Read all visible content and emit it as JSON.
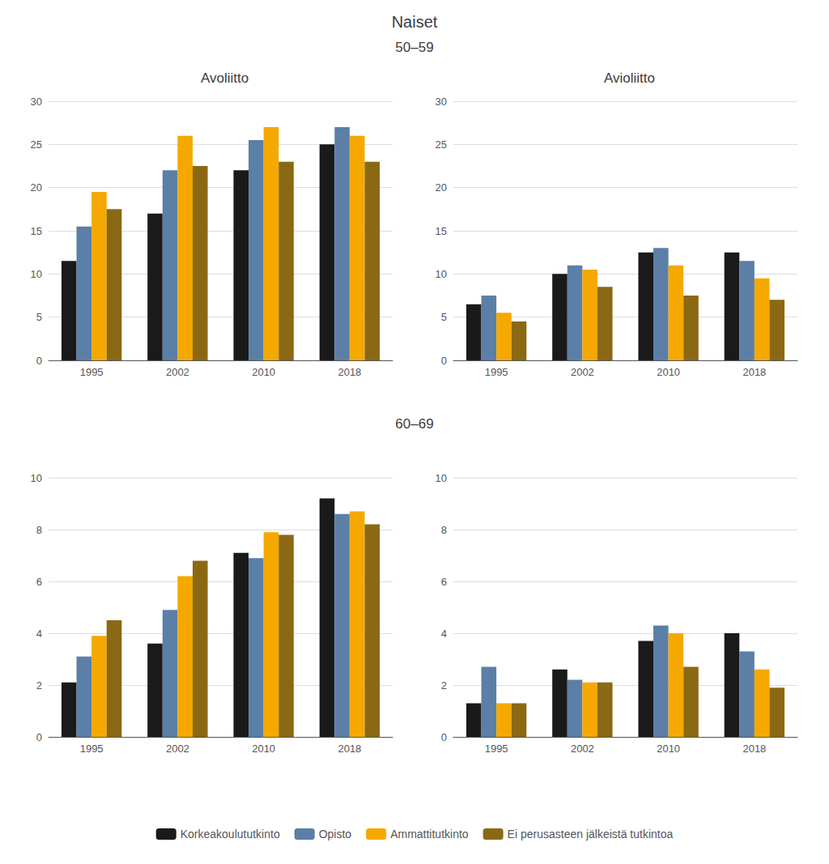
{
  "title": "Naiset",
  "chart_data": [
    {
      "type": "bar",
      "title": "Avoliitto",
      "annotations": [
        "50–59"
      ],
      "categories": [
        "1995",
        "2002",
        "2010",
        "2018"
      ],
      "series": [
        {
          "name": "Korkeakoulututkinto",
          "color": "#1a1a1a",
          "values": [
            11.5,
            17.0,
            22.0,
            25.0
          ]
        },
        {
          "name": "Opisto",
          "color": "#5b7fa6",
          "values": [
            15.5,
            22.0,
            25.5,
            27.0
          ]
        },
        {
          "name": "Ammattitutkinto",
          "color": "#f5a800",
          "values": [
            19.5,
            26.0,
            27.0,
            26.0
          ]
        },
        {
          "name": "Ei perusasteen jälkeistä tutkintoa",
          "color": "#8b6914",
          "values": [
            17.5,
            22.5,
            23.0,
            23.0
          ]
        }
      ],
      "ylim": [
        0,
        30
      ],
      "yticks": [
        0,
        5,
        10,
        15,
        20,
        25,
        30
      ],
      "grid": true,
      "legend": "bottom"
    },
    {
      "type": "bar",
      "title": "Avioliitto",
      "categories": [
        "1995",
        "2002",
        "2010",
        "2018"
      ],
      "series": [
        {
          "name": "Korkeakoulututkinto",
          "color": "#1a1a1a",
          "values": [
            6.5,
            10.0,
            12.5,
            12.5
          ]
        },
        {
          "name": "Opisto",
          "color": "#5b7fa6",
          "values": [
            7.5,
            11.0,
            13.0,
            11.5
          ]
        },
        {
          "name": "Ammattitutkinto",
          "color": "#f5a800",
          "values": [
            5.5,
            10.5,
            11.0,
            9.5
          ]
        },
        {
          "name": "Ei perusasteen jälkeistä tutkintoa",
          "color": "#8b6914",
          "values": [
            4.5,
            8.5,
            7.5,
            7.0
          ]
        }
      ],
      "ylim": [
        0,
        30
      ],
      "yticks": [
        0,
        5,
        10,
        15,
        20,
        25,
        30
      ],
      "grid": true,
      "legend": "bottom"
    },
    {
      "type": "bar",
      "annotations": [
        "60–69"
      ],
      "categories": [
        "1995",
        "2002",
        "2010",
        "2018"
      ],
      "series": [
        {
          "name": "Korkeakoulututkinto",
          "color": "#1a1a1a",
          "values": [
            2.1,
            3.6,
            7.1,
            9.2
          ]
        },
        {
          "name": "Opisto",
          "color": "#5b7fa6",
          "values": [
            3.1,
            4.9,
            6.9,
            8.6
          ]
        },
        {
          "name": "Ammattitutkinto",
          "color": "#f5a800",
          "values": [
            3.9,
            6.2,
            7.9,
            8.7
          ]
        },
        {
          "name": "Ei perusasteen jälkeistä tutkintoa",
          "color": "#8b6914",
          "values": [
            4.5,
            6.8,
            7.8,
            8.2
          ]
        }
      ],
      "ylim": [
        0,
        10
      ],
      "yticks": [
        0,
        2,
        4,
        6,
        8,
        10
      ],
      "grid": true,
      "legend": "bottom"
    },
    {
      "type": "bar",
      "categories": [
        "1995",
        "2002",
        "2010",
        "2018"
      ],
      "series": [
        {
          "name": "Korkeakoulututkinto",
          "color": "#1a1a1a",
          "values": [
            1.3,
            2.6,
            3.7,
            4.0
          ]
        },
        {
          "name": "Opisto",
          "color": "#5b7fa6",
          "values": [
            2.7,
            2.2,
            4.3,
            3.3
          ]
        },
        {
          "name": "Ammattitutkinto",
          "color": "#f5a800",
          "values": [
            1.3,
            2.1,
            4.0,
            2.6
          ]
        },
        {
          "name": "Ei perusasteen jälkeistä tutkintoa",
          "color": "#8b6914",
          "values": [
            1.3,
            2.1,
            2.7,
            1.9
          ]
        }
      ],
      "ylim": [
        0,
        10
      ],
      "yticks": [
        0,
        2,
        4,
        6,
        8,
        10
      ],
      "grid": true,
      "legend": "bottom"
    }
  ]
}
